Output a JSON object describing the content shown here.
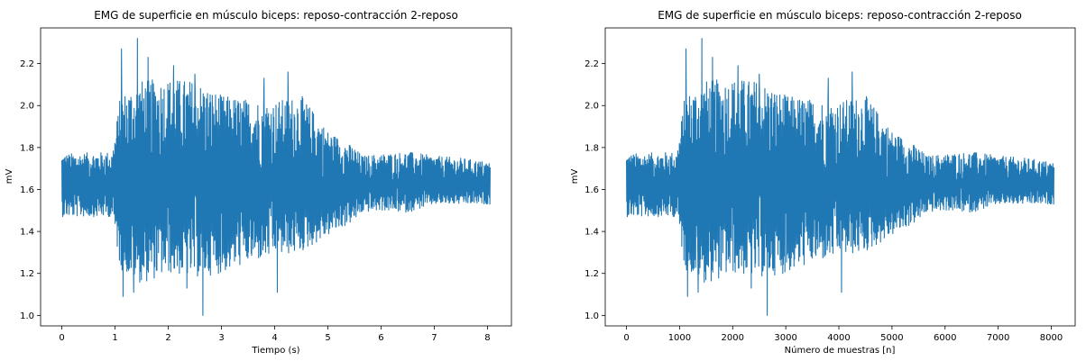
{
  "chart_data": [
    {
      "type": "line",
      "title": "EMG de superficie en músculo biceps: reposo-contracción 2-reposo",
      "xlabel": "Tiempo (s)",
      "ylabel": "mV",
      "xlim": [
        -0.4,
        8.45
      ],
      "ylim": [
        0.95,
        2.37
      ],
      "x_ticks": [
        0,
        1,
        2,
        3,
        4,
        5,
        6,
        7,
        8
      ],
      "y_ticks": [
        1.0,
        1.2,
        1.4,
        1.6,
        1.8,
        2.0,
        2.2
      ],
      "x_tick_labels": [
        "0",
        "1",
        "2",
        "3",
        "4",
        "5",
        "6",
        "7",
        "8"
      ],
      "y_tick_labels": [
        "1.0",
        "1.2",
        "1.4",
        "1.6",
        "1.8",
        "2.0",
        "2.2"
      ],
      "grid": false,
      "color": "#1f77b4",
      "x_range": [
        0,
        8.05
      ],
      "baseline": 1.62,
      "envelope": {
        "x": [
          0,
          0.95,
          1.1,
          1.5,
          2.0,
          2.5,
          3.0,
          3.5,
          4.0,
          4.5,
          5.0,
          5.5,
          5.65,
          6.0,
          6.5,
          7.0,
          7.5,
          8.05
        ],
        "high": [
          1.77,
          1.78,
          2.05,
          2.12,
          2.13,
          2.12,
          2.05,
          2.03,
          2.02,
          2.05,
          1.88,
          1.8,
          1.76,
          1.77,
          1.78,
          1.76,
          1.75,
          1.73
        ],
        "low": [
          1.47,
          1.47,
          1.22,
          1.15,
          1.2,
          1.18,
          1.2,
          1.25,
          1.28,
          1.3,
          1.38,
          1.45,
          1.49,
          1.5,
          1.49,
          1.53,
          1.53,
          1.53
        ]
      },
      "peaks": [
        {
          "x": 1.12,
          "y": 2.27
        },
        {
          "x": 1.42,
          "y": 2.32
        },
        {
          "x": 1.62,
          "y": 2.23
        },
        {
          "x": 2.1,
          "y": 2.19
        },
        {
          "x": 2.5,
          "y": 2.15
        },
        {
          "x": 3.8,
          "y": 2.13
        },
        {
          "x": 4.25,
          "y": 2.16
        }
      ],
      "troughs": [
        {
          "x": 1.15,
          "y": 1.09
        },
        {
          "x": 1.35,
          "y": 1.11
        },
        {
          "x": 2.65,
          "y": 1.0
        },
        {
          "x": 2.35,
          "y": 1.13
        },
        {
          "x": 4.05,
          "y": 1.11
        }
      ]
    },
    {
      "type": "line",
      "title": "EMG de superficie en músculo biceps: reposo-contracción 2-reposo",
      "xlabel": "Número de muestras [n]",
      "ylabel": "mV",
      "xlim": [
        -400,
        8450
      ],
      "ylim": [
        0.95,
        2.37
      ],
      "x_ticks": [
        0,
        1000,
        2000,
        3000,
        4000,
        5000,
        6000,
        7000,
        8000
      ],
      "y_ticks": [
        1.0,
        1.2,
        1.4,
        1.6,
        1.8,
        2.0,
        2.2
      ],
      "x_tick_labels": [
        "0",
        "1000",
        "2000",
        "3000",
        "4000",
        "5000",
        "6000",
        "7000",
        "8000"
      ],
      "y_tick_labels": [
        "1.0",
        "1.2",
        "1.4",
        "1.6",
        "1.8",
        "2.0",
        "2.2"
      ],
      "grid": false,
      "color": "#1f77b4",
      "x_range": [
        0,
        8050
      ],
      "baseline": 1.62,
      "envelope": {
        "x": [
          0,
          950,
          1100,
          1500,
          2000,
          2500,
          3000,
          3500,
          4000,
          4500,
          5000,
          5500,
          5650,
          6000,
          6500,
          7000,
          7500,
          8050
        ],
        "high": [
          1.77,
          1.78,
          2.05,
          2.12,
          2.13,
          2.12,
          2.05,
          2.03,
          2.02,
          2.05,
          1.88,
          1.8,
          1.76,
          1.77,
          1.78,
          1.76,
          1.75,
          1.73
        ],
        "low": [
          1.47,
          1.47,
          1.22,
          1.15,
          1.2,
          1.18,
          1.2,
          1.25,
          1.28,
          1.3,
          1.38,
          1.45,
          1.49,
          1.5,
          1.49,
          1.53,
          1.53,
          1.53
        ]
      },
      "peaks": [
        {
          "x": 1120,
          "y": 2.27
        },
        {
          "x": 1420,
          "y": 2.32
        },
        {
          "x": 1620,
          "y": 2.23
        },
        {
          "x": 2100,
          "y": 2.19
        },
        {
          "x": 2500,
          "y": 2.15
        },
        {
          "x": 3800,
          "y": 2.13
        },
        {
          "x": 4250,
          "y": 2.16
        }
      ],
      "troughs": [
        {
          "x": 1150,
          "y": 1.09
        },
        {
          "x": 1350,
          "y": 1.11
        },
        {
          "x": 2650,
          "y": 1.0
        },
        {
          "x": 2350,
          "y": 1.13
        },
        {
          "x": 4050,
          "y": 1.11
        }
      ]
    }
  ]
}
